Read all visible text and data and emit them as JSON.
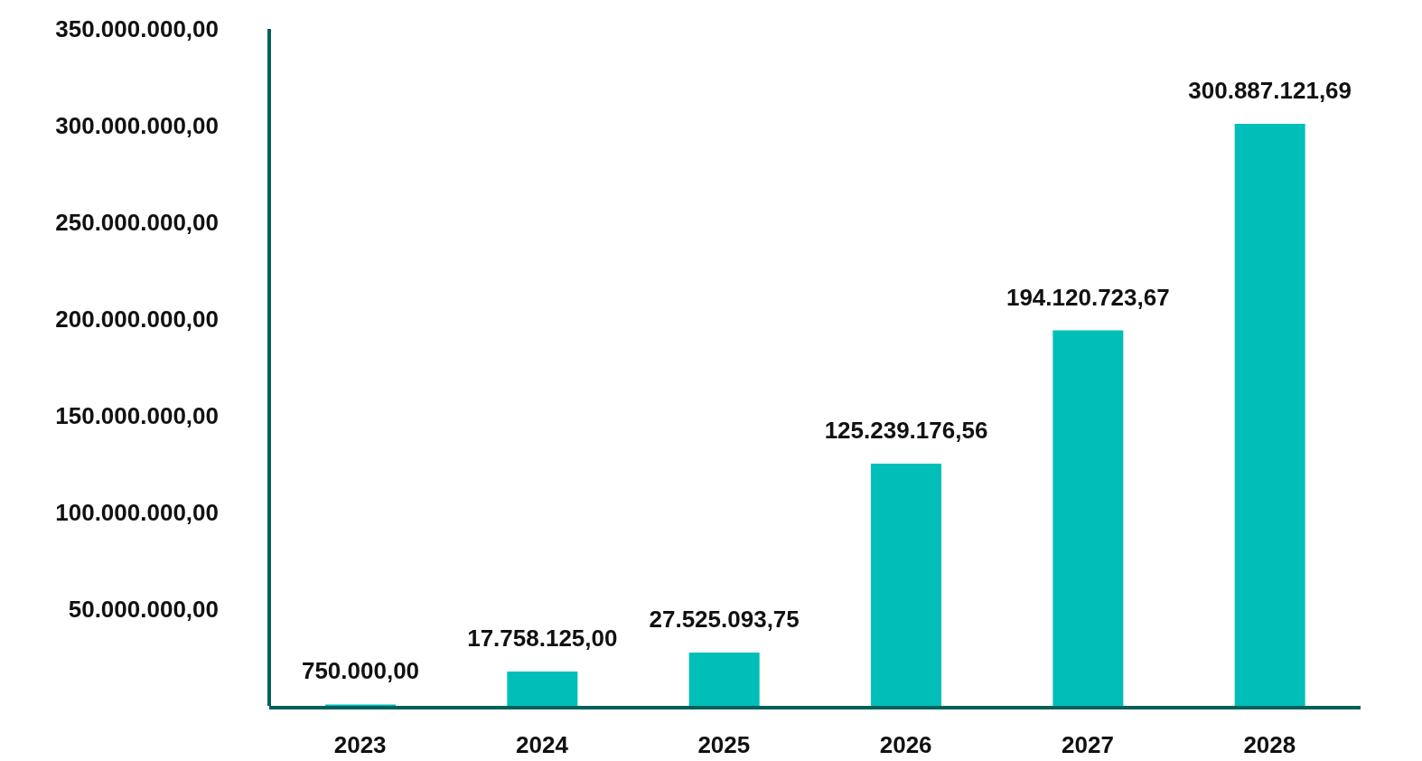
{
  "chart_data": {
    "type": "bar",
    "categories": [
      "2023",
      "2024",
      "2025",
      "2026",
      "2027",
      "2028"
    ],
    "values": [
      750000,
      17758125,
      27525093.75,
      125239176.56,
      194120723.67,
      300887121.69
    ],
    "value_labels": [
      "750.000,00",
      "17.758.125,00",
      "27.525.093,75",
      "125.239.176,56",
      "194.120.723,67",
      "300.887.121,69"
    ],
    "color": "#00bfb9",
    "ylim": [
      0,
      350000000
    ],
    "yticks": [
      {
        "value": 50000000,
        "label": "50.000.000,00"
      },
      {
        "value": 100000000,
        "label": "100.000.000,00"
      },
      {
        "value": 150000000,
        "label": "150.000.000,00"
      },
      {
        "value": 200000000,
        "label": "200.000.000,00"
      },
      {
        "value": 250000000,
        "label": "250.000.000,00"
      },
      {
        "value": 300000000,
        "label": "300.000.000,00"
      },
      {
        "value": 350000000,
        "label": "350.000.000,00"
      }
    ],
    "grid": false,
    "legend": false
  }
}
